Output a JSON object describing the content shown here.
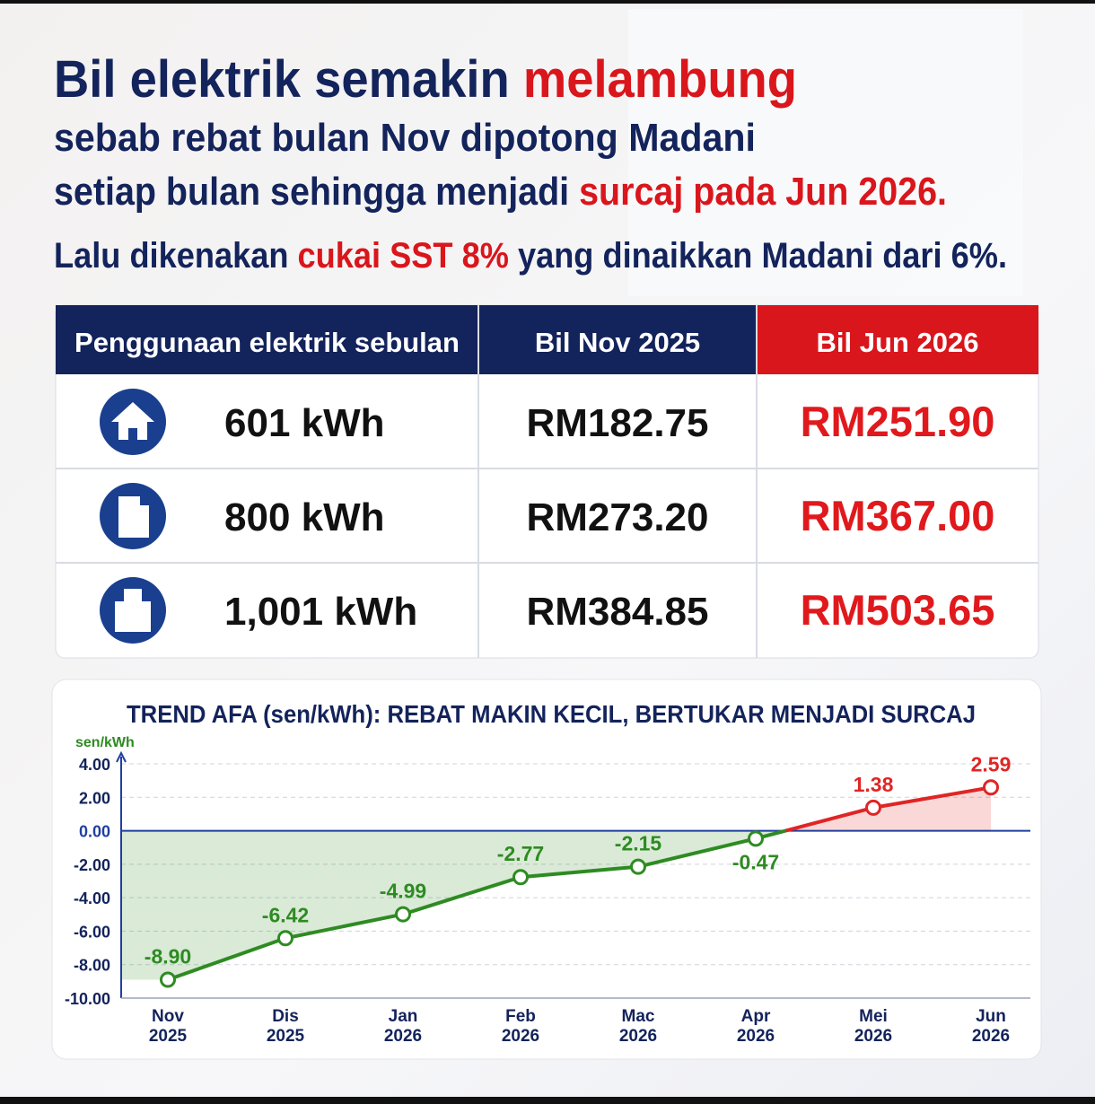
{
  "header": {
    "lines": [
      [
        {
          "text": "Bil elektrik semakin ",
          "color": "#13235b"
        },
        {
          "text": "melambung",
          "color": "#d9161c"
        }
      ],
      [
        {
          "text": "sebab rebat bulan Nov dipotong Madani",
          "color": "#13235b"
        }
      ],
      [
        {
          "text": "setiap bulan sehingga menjadi ",
          "color": "#13235b"
        },
        {
          "text": "surcaj pada Jun 2026.",
          "color": "#d9161c"
        }
      ],
      [
        {
          "text": "Lalu dikenakan ",
          "color": "#13235b"
        },
        {
          "text": "cukai SST 8%",
          "color": "#d9161c"
        },
        {
          "text": " yang dinaikkan Madani dari 6%.",
          "color": "#13235b"
        }
      ]
    ]
  },
  "table": {
    "columns": [
      "Penggunaan elektrik sebulan",
      "Bil Nov 2025",
      "Bil Jun 2026"
    ],
    "rows": [
      [
        "601 kWh",
        "RM182.75",
        "RM251.90"
      ],
      [
        "800 kWh",
        "RM273.20",
        "RM367.00"
      ],
      [
        "1,001 kWh",
        "RM384.85",
        "RM503.65"
      ]
    ]
  },
  "chart_data": {
    "type": "line",
    "title": "TREND AFA (sen/kWh): REBAT MAKIN KECIL, BERTUKAR MENJADI SURCAJ",
    "y_label": "sen/kWh",
    "categories": [
      "Nov 2025",
      "Dis 2025",
      "Jan 2026",
      "Feb 2026",
      "Mac 2026",
      "Apr 2026",
      "Mei 2026",
      "Jun 2026"
    ],
    "values": [
      -8.9,
      -6.42,
      -4.99,
      -2.77,
      -2.15,
      -0.47,
      1.38,
      2.59
    ],
    "value_labels": [
      "-8.90",
      "-6.42",
      "-4.99",
      "-2.77",
      "-2.15",
      "-0.47",
      "1.38",
      "2.59"
    ],
    "colors": {
      "negative": "#2e8b22",
      "positive": "#e02525"
    },
    "ylim": [
      -10,
      4
    ],
    "yticks": [
      {
        "value": -10,
        "label": "-10.00"
      },
      {
        "value": -8,
        "label": "-8.00"
      },
      {
        "value": -6,
        "label": "-6.00"
      },
      {
        "value": -4,
        "label": "-4.00"
      },
      {
        "value": -2,
        "label": "-2.00"
      },
      {
        "value": 0,
        "label": "0.00"
      },
      {
        "value": 2,
        "label": "2.00"
      },
      {
        "value": 4,
        "label": "4.00"
      }
    ],
    "grid": true
  }
}
